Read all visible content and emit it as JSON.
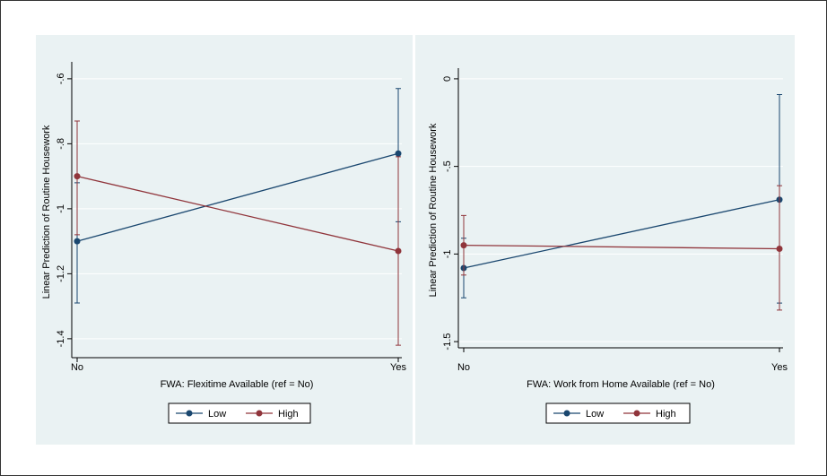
{
  "chart_data": [
    {
      "type": "line",
      "xlabel": "FWA: Flexitime Available (ref = No)",
      "ylabel": "Linear Prediction of Routine Housework",
      "categories": [
        "No",
        "Yes"
      ],
      "ylim": [
        -1.45,
        -0.57
      ],
      "yticks": [
        -0.6,
        -0.8,
        -1,
        -1.2,
        -1.4
      ],
      "ytick_labels": [
        "-.6",
        "-.8",
        "-1",
        "-1.2",
        "-1.4"
      ],
      "grid": true,
      "legend_position": "bottom",
      "series": [
        {
          "name": "Low",
          "color": "#1a476f",
          "values": [
            -1.1,
            -0.83
          ],
          "ci_low": [
            -1.29,
            -1.04
          ],
          "ci_high": [
            -0.92,
            -0.63
          ]
        },
        {
          "name": "High",
          "color": "#90353b",
          "values": [
            -0.9,
            -1.13
          ],
          "ci_low": [
            -1.08,
            -1.42
          ],
          "ci_high": [
            -0.73,
            -0.84
          ]
        }
      ]
    },
    {
      "type": "line",
      "xlabel": "FWA: Work from Home Available (ref = No)",
      "ylabel": "Linear Prediction of Routine Housework",
      "categories": [
        "No",
        "Yes"
      ],
      "ylim": [
        -1.52,
        0.02
      ],
      "yticks": [
        0,
        -0.5,
        -1,
        -1.5
      ],
      "ytick_labels": [
        "0",
        "-.5",
        "-1",
        "-1.5"
      ],
      "grid": true,
      "legend_position": "bottom",
      "series": [
        {
          "name": "Low",
          "color": "#1a476f",
          "values": [
            -1.08,
            -0.69
          ],
          "ci_low": [
            -1.25,
            -1.28
          ],
          "ci_high": [
            -0.91,
            -0.09
          ]
        },
        {
          "name": "High",
          "color": "#90353b",
          "values": [
            -0.95,
            -0.97
          ],
          "ci_low": [
            -1.12,
            -1.32
          ],
          "ci_high": [
            -0.78,
            -0.61
          ]
        }
      ]
    }
  ]
}
